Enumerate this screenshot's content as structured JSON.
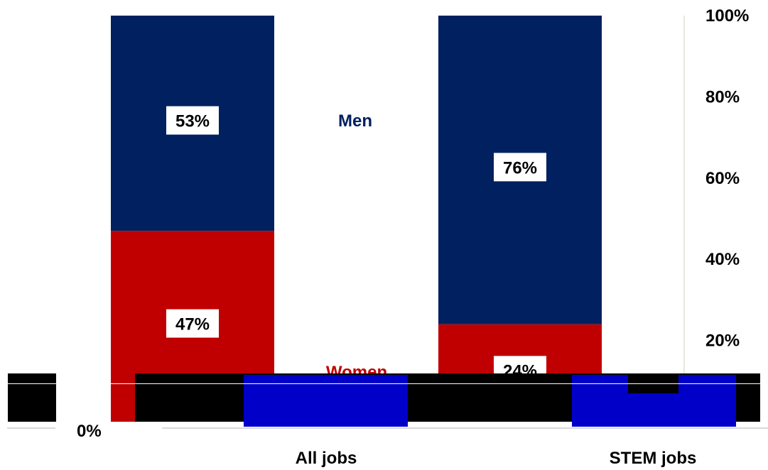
{
  "chart_data": {
    "type": "bar",
    "stacked": true,
    "categories": [
      "All jobs",
      "STEM jobs"
    ],
    "series": [
      {
        "name": "Women",
        "values": [
          47,
          24
        ],
        "color": "#c00000"
      },
      {
        "name": "Men",
        "values": [
          53,
          76
        ],
        "color": "#002060"
      }
    ],
    "data_labels": [
      [
        "47%",
        "53%"
      ],
      [
        "24%",
        "76%"
      ]
    ],
    "ylim": [
      0,
      100
    ],
    "yticks": [
      "0%",
      "20%",
      "40%",
      "60%",
      "80%",
      "100%"
    ],
    "y_axis_position": "right",
    "grid": false,
    "legend": "inline-series-labels"
  }
}
